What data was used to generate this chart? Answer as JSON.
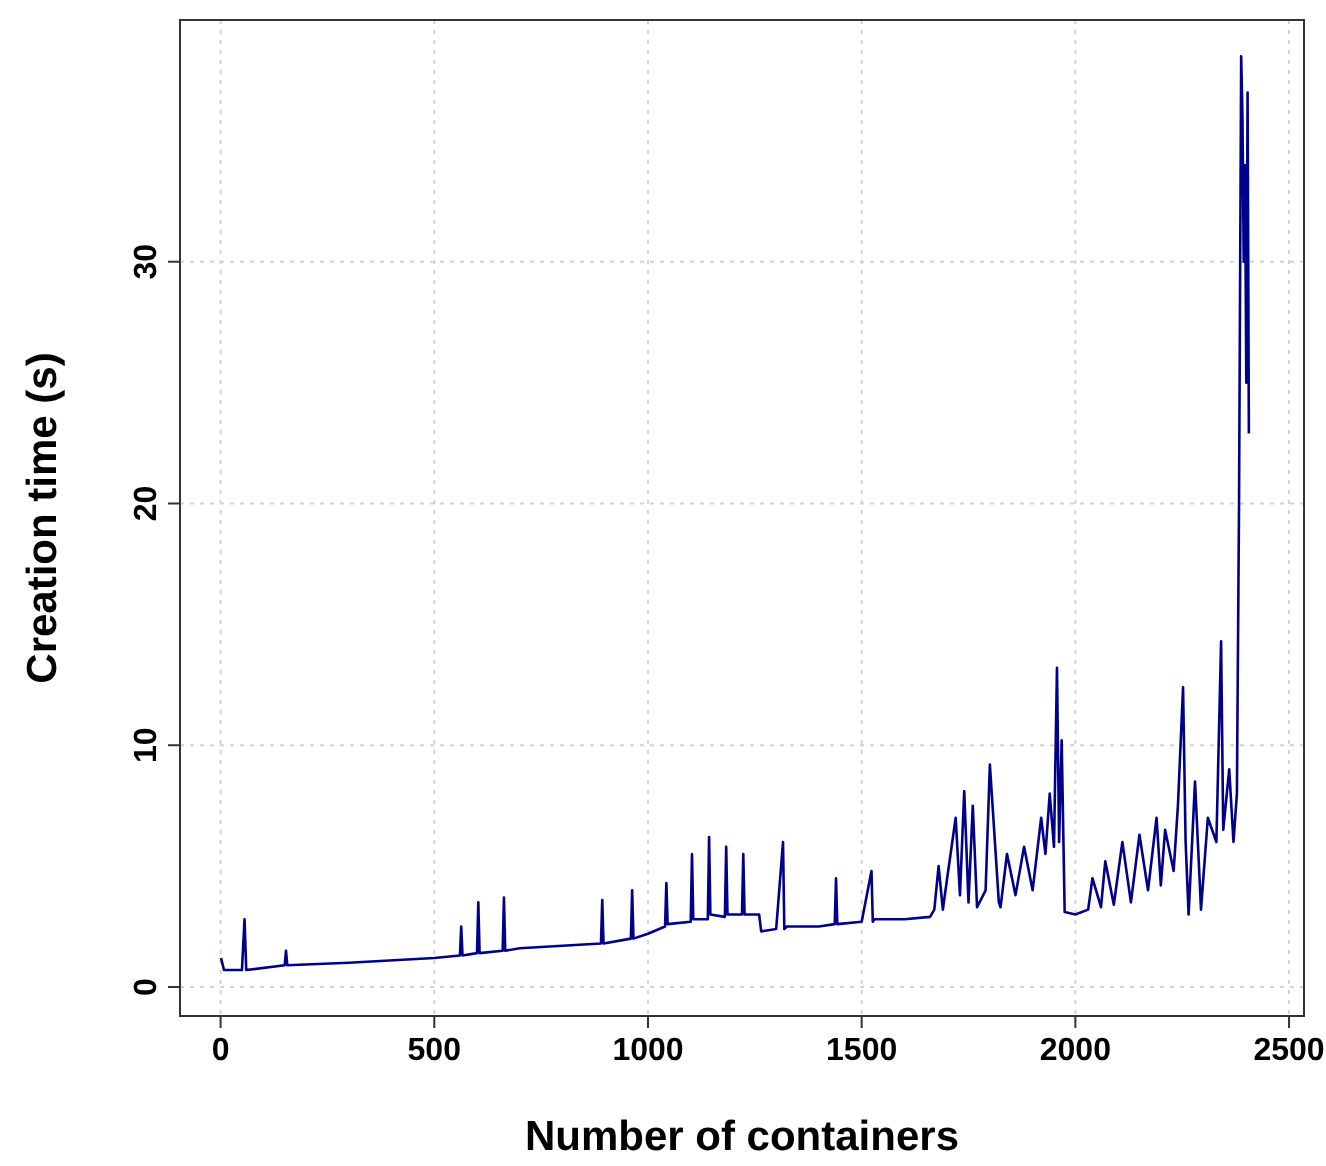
{
  "chart_data": {
    "type": "line",
    "xlabel": "Number of containers",
    "ylabel": "Creation time (s)",
    "xlim": [
      -95,
      2535
    ],
    "ylim": [
      -1.2,
      40
    ],
    "xticks": [
      0,
      500,
      1000,
      1500,
      2000,
      2500
    ],
    "yticks": [
      0,
      10,
      20,
      30
    ],
    "grid": true,
    "line_style": "solid",
    "marker": "none",
    "series": [
      {
        "color": "#00008b",
        "x": [
          1,
          8,
          50,
          56,
          60,
          150,
          153,
          156,
          300,
          500,
          560,
          563,
          566,
          600,
          603,
          606,
          660,
          663,
          666,
          700,
          890,
          893,
          896,
          960,
          963,
          966,
          1000,
          1040,
          1043,
          1046,
          1100,
          1103,
          1106,
          1140,
          1143,
          1146,
          1180,
          1183,
          1186,
          1220,
          1223,
          1226,
          1260,
          1265,
          1300,
          1316,
          1319,
          1325,
          1400,
          1437,
          1440,
          1443,
          1500,
          1523,
          1526,
          1530,
          1600,
          1660,
          1670,
          1680,
          1690,
          1700,
          1720,
          1730,
          1740,
          1750,
          1760,
          1770,
          1790,
          1800,
          1821,
          1825,
          1840,
          1860,
          1880,
          1900,
          1920,
          1930,
          1940,
          1950,
          1957,
          1962,
          1968,
          1975,
          2000,
          2030,
          2040,
          2060,
          2070,
          2090,
          2110,
          2130,
          2150,
          2170,
          2190,
          2200,
          2210,
          2230,
          2240,
          2252,
          2258,
          2265,
          2280,
          2294,
          2310,
          2330,
          2341,
          2346,
          2360,
          2370,
          2378,
          2383,
          2388,
          2391,
          2394,
          2397,
          2400,
          2403,
          2406
        ],
        "values": [
          1.2,
          0.7,
          0.7,
          2.8,
          0.7,
          0.9,
          1.5,
          0.9,
          1.0,
          1.2,
          1.3,
          2.5,
          1.3,
          1.4,
          3.5,
          1.4,
          1.5,
          3.7,
          1.5,
          1.6,
          1.8,
          3.6,
          1.8,
          2.0,
          4.0,
          2.0,
          2.2,
          2.5,
          4.3,
          2.6,
          2.7,
          5.5,
          2.8,
          2.8,
          6.2,
          3.0,
          2.9,
          5.8,
          3.0,
          3.0,
          5.5,
          3.0,
          3.0,
          2.3,
          2.4,
          6.0,
          2.4,
          2.5,
          2.5,
          2.6,
          4.5,
          2.6,
          2.7,
          4.8,
          2.7,
          2.8,
          2.8,
          2.9,
          3.2,
          5.0,
          3.2,
          4.5,
          7.0,
          3.8,
          8.1,
          3.5,
          7.5,
          3.3,
          4.0,
          9.2,
          3.5,
          3.3,
          5.5,
          3.8,
          5.8,
          4.0,
          7.0,
          5.5,
          8.0,
          5.8,
          13.2,
          6.0,
          10.2,
          3.1,
          3.0,
          3.2,
          4.5,
          3.3,
          5.2,
          3.4,
          6.0,
          3.5,
          6.3,
          4.0,
          7.0,
          4.2,
          6.5,
          4.8,
          7.5,
          12.4,
          6.0,
          3.0,
          8.5,
          3.2,
          7.0,
          6.0,
          14.3,
          6.5,
          9.0,
          6.0,
          8.0,
          20.0,
          38.5,
          36.0,
          30.0,
          34.0,
          25.0,
          37.0,
          22.9
        ]
      }
    ]
  }
}
